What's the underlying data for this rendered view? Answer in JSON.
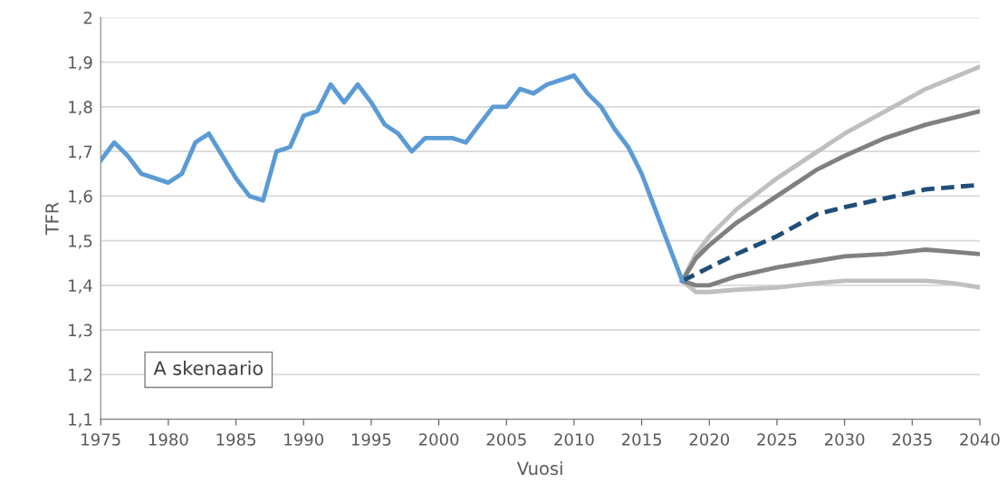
{
  "chart_data": {
    "type": "line",
    "xlabel": "Vuosi",
    "ylabel": "TFR",
    "annotations": [
      "A skenaario"
    ],
    "xlim": [
      1975,
      2040
    ],
    "xticks": [
      1975,
      1980,
      1985,
      1990,
      1995,
      2000,
      2005,
      2010,
      2015,
      2020,
      2025,
      2030,
      2035,
      2040
    ],
    "ylim": [
      1.1,
      2
    ],
    "yticks": [
      {
        "value": 1.1,
        "label": "1,1"
      },
      {
        "value": 1.2,
        "label": "1,2"
      },
      {
        "value": 1.3,
        "label": "1,3"
      },
      {
        "value": 1.4,
        "label": "1,4"
      },
      {
        "value": 1.5,
        "label": "1,5"
      },
      {
        "value": 1.6,
        "label": "1,6"
      },
      {
        "value": 1.7,
        "label": "1,7"
      },
      {
        "value": 1.8,
        "label": "1,8"
      },
      {
        "value": 1.9,
        "label": "1,9"
      },
      {
        "value": 2,
        "label": "2"
      }
    ],
    "grid": "y",
    "legend": false,
    "marker": "none",
    "series": [
      {
        "color": "#bfbfbf",
        "x": [
          2018,
          2019,
          2020,
          2022,
          2025,
          2028,
          2030,
          2033,
          2036,
          2040
        ],
        "values": [
          1.41,
          1.47,
          1.51,
          1.57,
          1.64,
          1.7,
          1.74,
          1.79,
          1.84,
          1.89
        ]
      },
      {
        "color": "#808080",
        "x": [
          2018,
          2019,
          2020,
          2022,
          2025,
          2028,
          2030,
          2033,
          2036,
          2040
        ],
        "values": [
          1.41,
          1.46,
          1.49,
          1.54,
          1.6,
          1.66,
          1.69,
          1.73,
          1.76,
          1.79
        ]
      },
      {
        "color": "#bfbfbf",
        "x": [
          2018,
          2019,
          2020,
          2022,
          2025,
          2028,
          2030,
          2033,
          2036,
          2038,
          2040
        ],
        "values": [
          1.41,
          1.385,
          1.385,
          1.39,
          1.395,
          1.405,
          1.41,
          1.41,
          1.41,
          1.405,
          1.395
        ]
      },
      {
        "color": "#808080",
        "x": [
          2018,
          2019,
          2020,
          2022,
          2025,
          2028,
          2030,
          2033,
          2036,
          2038,
          2040
        ],
        "values": [
          1.41,
          1.4,
          1.4,
          1.42,
          1.44,
          1.455,
          1.465,
          1.47,
          1.48,
          1.475,
          1.47
        ]
      },
      {
        "color": "#1f4e79",
        "line_style": "dashed",
        "x": [
          2018,
          2020,
          2022,
          2025,
          2028,
          2030,
          2033,
          2036,
          2040
        ],
        "values": [
          1.41,
          1.44,
          1.47,
          1.51,
          1.56,
          1.575,
          1.595,
          1.615,
          1.625
        ]
      },
      {
        "color": "#5b9bd5",
        "x": [
          1975,
          1976,
          1977,
          1978,
          1979,
          1980,
          1981,
          1982,
          1983,
          1984,
          1985,
          1986,
          1987,
          1988,
          1989,
          1990,
          1991,
          1992,
          1993,
          1994,
          1995,
          1996,
          1997,
          1998,
          1999,
          2000,
          2001,
          2002,
          2003,
          2004,
          2005,
          2006,
          2007,
          2008,
          2009,
          2010,
          2011,
          2012,
          2013,
          2014,
          2015,
          2016,
          2017,
          2018
        ],
        "values": [
          1.68,
          1.72,
          1.69,
          1.65,
          1.64,
          1.63,
          1.65,
          1.72,
          1.74,
          1.69,
          1.64,
          1.6,
          1.59,
          1.7,
          1.71,
          1.78,
          1.79,
          1.85,
          1.81,
          1.85,
          1.81,
          1.76,
          1.74,
          1.7,
          1.73,
          1.73,
          1.73,
          1.72,
          1.76,
          1.8,
          1.8,
          1.84,
          1.83,
          1.85,
          1.86,
          1.87,
          1.83,
          1.8,
          1.75,
          1.71,
          1.65,
          1.57,
          1.49,
          1.41
        ]
      }
    ]
  }
}
